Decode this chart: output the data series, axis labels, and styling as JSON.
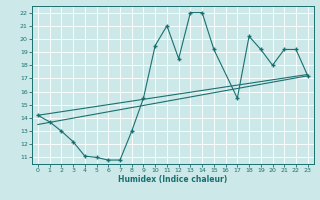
{
  "xlabel": "Humidex (Indice chaleur)",
  "xlim": [
    -0.5,
    23.5
  ],
  "ylim": [
    10.5,
    22.5
  ],
  "xticks": [
    0,
    1,
    2,
    3,
    4,
    5,
    6,
    7,
    8,
    9,
    10,
    11,
    12,
    13,
    14,
    15,
    16,
    17,
    18,
    19,
    20,
    21,
    22,
    23
  ],
  "yticks": [
    11,
    12,
    13,
    14,
    15,
    16,
    17,
    18,
    19,
    20,
    21,
    22
  ],
  "bg_color": "#cce8e8",
  "line_color": "#1a7070",
  "grid_color": "#ffffff",
  "zigzag_x": [
    0,
    1,
    2,
    3,
    4,
    5,
    6,
    7,
    8,
    9,
    10,
    11,
    12,
    13,
    14,
    15,
    17,
    18,
    19,
    20,
    21,
    22,
    23
  ],
  "zigzag_y": [
    14.2,
    13.7,
    13.0,
    12.2,
    11.1,
    11.0,
    10.8,
    10.8,
    13.0,
    15.5,
    19.5,
    21.0,
    18.5,
    22.0,
    22.0,
    19.2,
    15.5,
    20.2,
    19.2,
    18.0,
    19.2,
    19.2,
    17.2
  ],
  "upper_line_x": [
    0,
    23
  ],
  "upper_line_y": [
    14.2,
    17.3
  ],
  "lower_line_x": [
    0,
    23
  ],
  "lower_line_y": [
    13.5,
    17.2
  ]
}
